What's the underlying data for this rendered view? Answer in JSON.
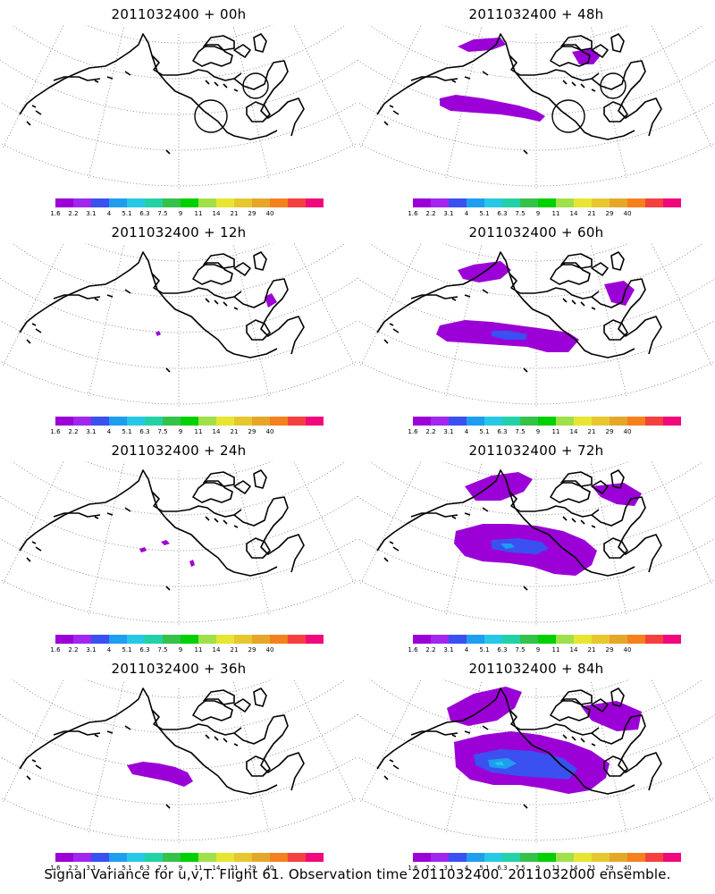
{
  "footer": "Signal Variance for u,v,T. Flight 61. Observation time 2011032400. 2011032000 ensemble.",
  "colorbar": {
    "colors": [
      "#9b00d6",
      "#a126ee",
      "#3a50f0",
      "#1f9ef0",
      "#27c8e6",
      "#22d2a6",
      "#35c24a",
      "#00d000",
      "#a0e04a",
      "#e6e632",
      "#e6c82e",
      "#e6a628",
      "#f5801e",
      "#f54040",
      "#f0087c"
    ],
    "labels": [
      "1.6",
      "2.2",
      "3.1",
      "4",
      "5.1",
      "6.3",
      "7.5",
      "9",
      "11",
      "14",
      "21",
      "29",
      "40"
    ]
  },
  "panels": [
    {
      "title": "2011032400 + 00h",
      "blobs": [],
      "circles": true
    },
    {
      "title": "2011032400 + 48h",
      "blobs": [
        "bering48",
        "hudson48"
      ],
      "circles": true
    },
    {
      "title": "2011032400 + 12h",
      "blobs": [
        "hudson12"
      ],
      "circles": false
    },
    {
      "title": "2011032400 + 60h",
      "blobs": [
        "bering60",
        "arctic60",
        "hudson60"
      ],
      "circles": false
    },
    {
      "title": "2011032400 + 24h",
      "blobs": [
        "spots24"
      ],
      "circles": false
    },
    {
      "title": "2011032400 + 72h",
      "blobs": [
        "bering72",
        "arctic72",
        "hudson72"
      ],
      "circles": false
    },
    {
      "title": "2011032400 + 36h",
      "blobs": [
        "bering36"
      ],
      "circles": false
    },
    {
      "title": "2011032400 + 84h",
      "blobs": [
        "bering84",
        "arctic84",
        "hudson84"
      ],
      "circles": false
    }
  ]
}
